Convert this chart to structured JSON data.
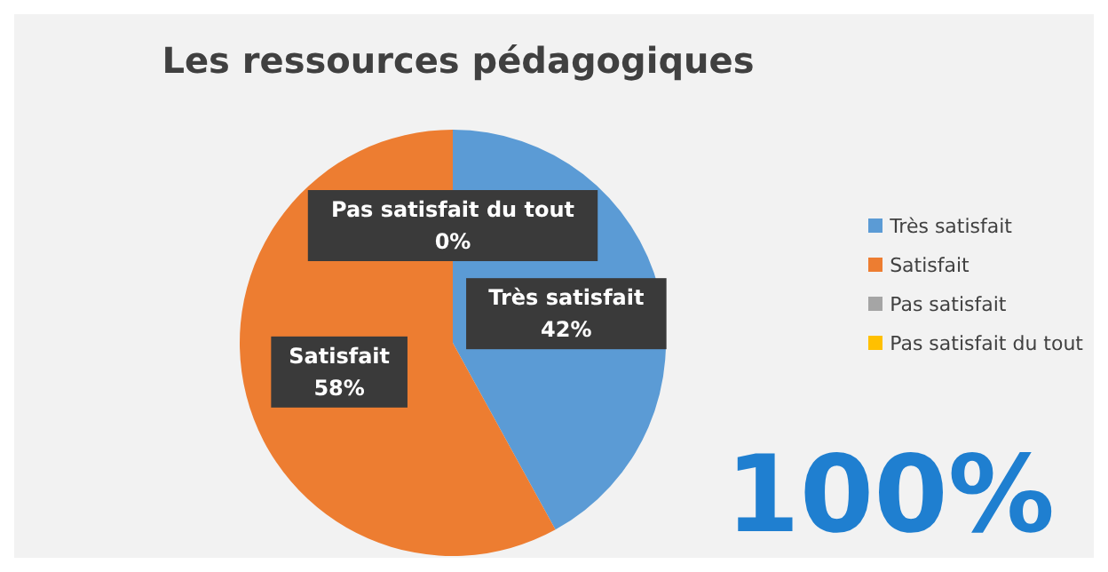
{
  "chart_data": {
    "type": "pie",
    "title": "Les ressources pédagogiques",
    "categories": [
      "Très satisfait",
      "Satisfait",
      "Pas satisfait",
      "Pas satisfait du tout"
    ],
    "values": [
      42,
      58,
      0,
      0
    ],
    "colors": [
      "#5b9bd5",
      "#ed7d31",
      "#a5a5a5",
      "#ffc000"
    ],
    "value_labels": [
      "42%",
      "58%",
      null,
      "0%"
    ],
    "legend": "right",
    "annotations": [
      "100%"
    ]
  }
}
